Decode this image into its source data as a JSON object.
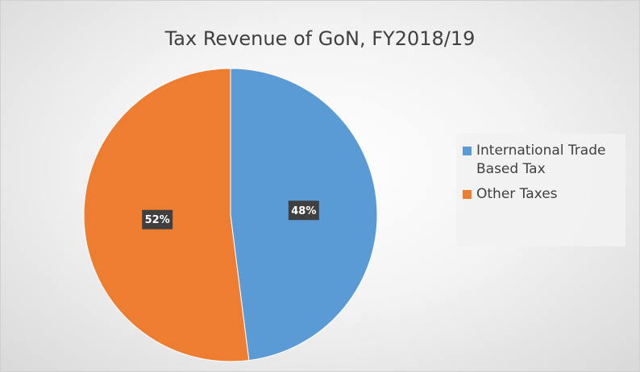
{
  "chart_data": {
    "type": "pie",
    "title": "Tax Revenue of GoN, FY2018/19",
    "categories": [
      "International Trade Based Tax",
      "Other Taxes"
    ],
    "values": [
      48,
      52
    ],
    "value_labels": [
      "48%",
      "52%"
    ],
    "colors": [
      "#5b9bd5",
      "#ed7d31"
    ],
    "legend": "right"
  }
}
